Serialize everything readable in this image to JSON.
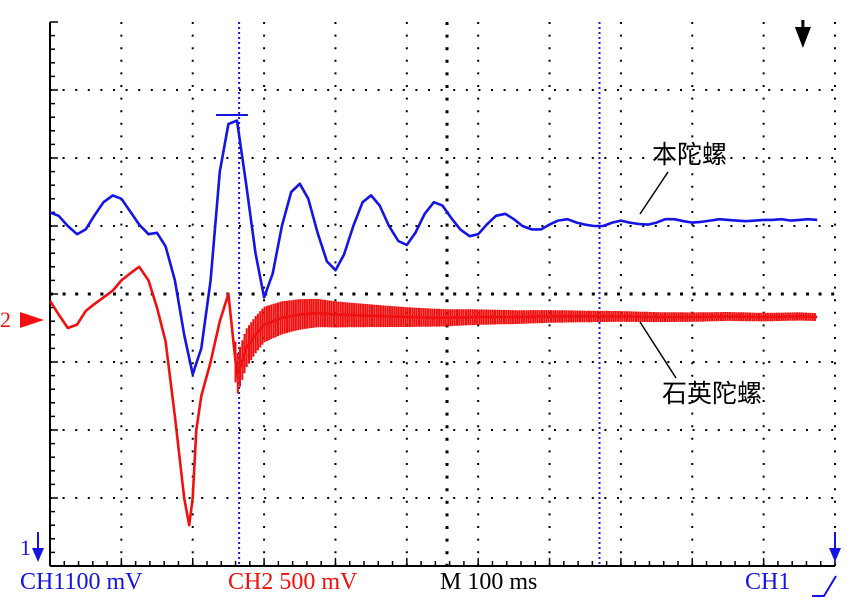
{
  "colors": {
    "ch1": "#1414e6",
    "ch2": "#f01010",
    "grid": "#000000"
  },
  "footer": {
    "ch1": "CH1100 mV",
    "ch2": "CH2  500 mV",
    "timebase": "M 100 ms",
    "trigger": "CH1"
  },
  "markers": {
    "ch1_ground": "1",
    "ch2_ground": "2"
  },
  "chart_data": {
    "type": "line",
    "x_unit_per_div": "100 ms",
    "x_divisions": 11,
    "y_divisions": 8,
    "xlim": [
      0,
      11
    ],
    "ylim": [
      0,
      8
    ],
    "cursor_x": [
      2.65,
      7.7
    ],
    "trigger_x": 10.55,
    "series": [
      {
        "name": "本陀螺",
        "ch": "CH1",
        "x": [
          0.0,
          0.12,
          0.25,
          0.38,
          0.5,
          0.62,
          0.75,
          0.88,
          1.0,
          1.12,
          1.25,
          1.38,
          1.5,
          1.62,
          1.75,
          1.88,
          2.0,
          2.12,
          2.25,
          2.38,
          2.5,
          2.62,
          2.75,
          2.88,
          3.0,
          3.12,
          3.25,
          3.38,
          3.5,
          3.62,
          3.75,
          3.88,
          4.0,
          4.12,
          4.25,
          4.38,
          4.5,
          4.62,
          4.75,
          4.88,
          5.0,
          5.12,
          5.25,
          5.38,
          5.5,
          5.62,
          5.75,
          5.88,
          6.0,
          6.12,
          6.25,
          6.38,
          6.5,
          6.62,
          6.75,
          6.88,
          7.0,
          7.12,
          7.25,
          7.38,
          7.5,
          7.62,
          7.75,
          7.88,
          8.0,
          8.12,
          8.25,
          8.38,
          8.5,
          8.62,
          8.75,
          8.88,
          9.0,
          9.12,
          9.25,
          9.38,
          9.5,
          9.62,
          9.75,
          9.88,
          10.0,
          10.12,
          10.25,
          10.38,
          10.5,
          10.62,
          10.75
        ],
        "values": [
          5.2,
          5.15,
          5.0,
          4.88,
          4.95,
          5.15,
          5.35,
          5.45,
          5.4,
          5.22,
          5.02,
          4.88,
          4.9,
          4.7,
          4.2,
          3.4,
          2.82,
          3.2,
          4.2,
          5.8,
          6.5,
          6.55,
          5.6,
          4.6,
          3.95,
          4.3,
          5.0,
          5.5,
          5.62,
          5.4,
          4.9,
          4.48,
          4.35,
          4.58,
          5.0,
          5.35,
          5.45,
          5.3,
          5.0,
          4.78,
          4.72,
          4.9,
          5.18,
          5.35,
          5.3,
          5.12,
          4.95,
          4.85,
          4.88,
          5.02,
          5.15,
          5.18,
          5.1,
          5.0,
          4.95,
          4.95,
          5.02,
          5.08,
          5.1,
          5.05,
          5.02,
          5.0,
          5.0,
          5.05,
          5.08,
          5.05,
          5.03,
          5.02,
          5.05,
          5.1,
          5.1,
          5.07,
          5.05,
          5.06,
          5.08,
          5.1,
          5.09,
          5.08,
          5.07,
          5.08,
          5.09,
          5.09,
          5.1,
          5.08,
          5.09,
          5.1,
          5.09
        ]
      },
      {
        "name": "石英陀螺",
        "ch": "CH2",
        "x": [
          0.0,
          0.12,
          0.25,
          0.38,
          0.5,
          0.62,
          0.75,
          0.88,
          1.0,
          1.12,
          1.25,
          1.38,
          1.5,
          1.62,
          1.75,
          1.88,
          1.95,
          2.0,
          2.05,
          2.12,
          2.25,
          2.38,
          2.5,
          2.62,
          2.75,
          2.88,
          3.0,
          3.25,
          3.5,
          3.75,
          4.0,
          4.5,
          5.0,
          5.5,
          6.0,
          6.5,
          7.0,
          7.5,
          8.0,
          8.5,
          9.0,
          9.5,
          10.0,
          10.5,
          10.75
        ],
        "values": [
          3.9,
          3.7,
          3.5,
          3.55,
          3.75,
          3.85,
          3.95,
          4.05,
          4.2,
          4.3,
          4.4,
          4.2,
          3.8,
          3.3,
          2.2,
          1.0,
          0.6,
          1.0,
          2.0,
          2.5,
          3.0,
          3.6,
          4.0,
          2.8,
          3.2,
          3.4,
          3.55,
          3.65,
          3.7,
          3.72,
          3.7,
          3.68,
          3.66,
          3.65,
          3.66,
          3.66,
          3.67,
          3.67,
          3.67,
          3.66,
          3.66,
          3.67,
          3.66,
          3.67,
          3.66
        ]
      }
    ]
  }
}
